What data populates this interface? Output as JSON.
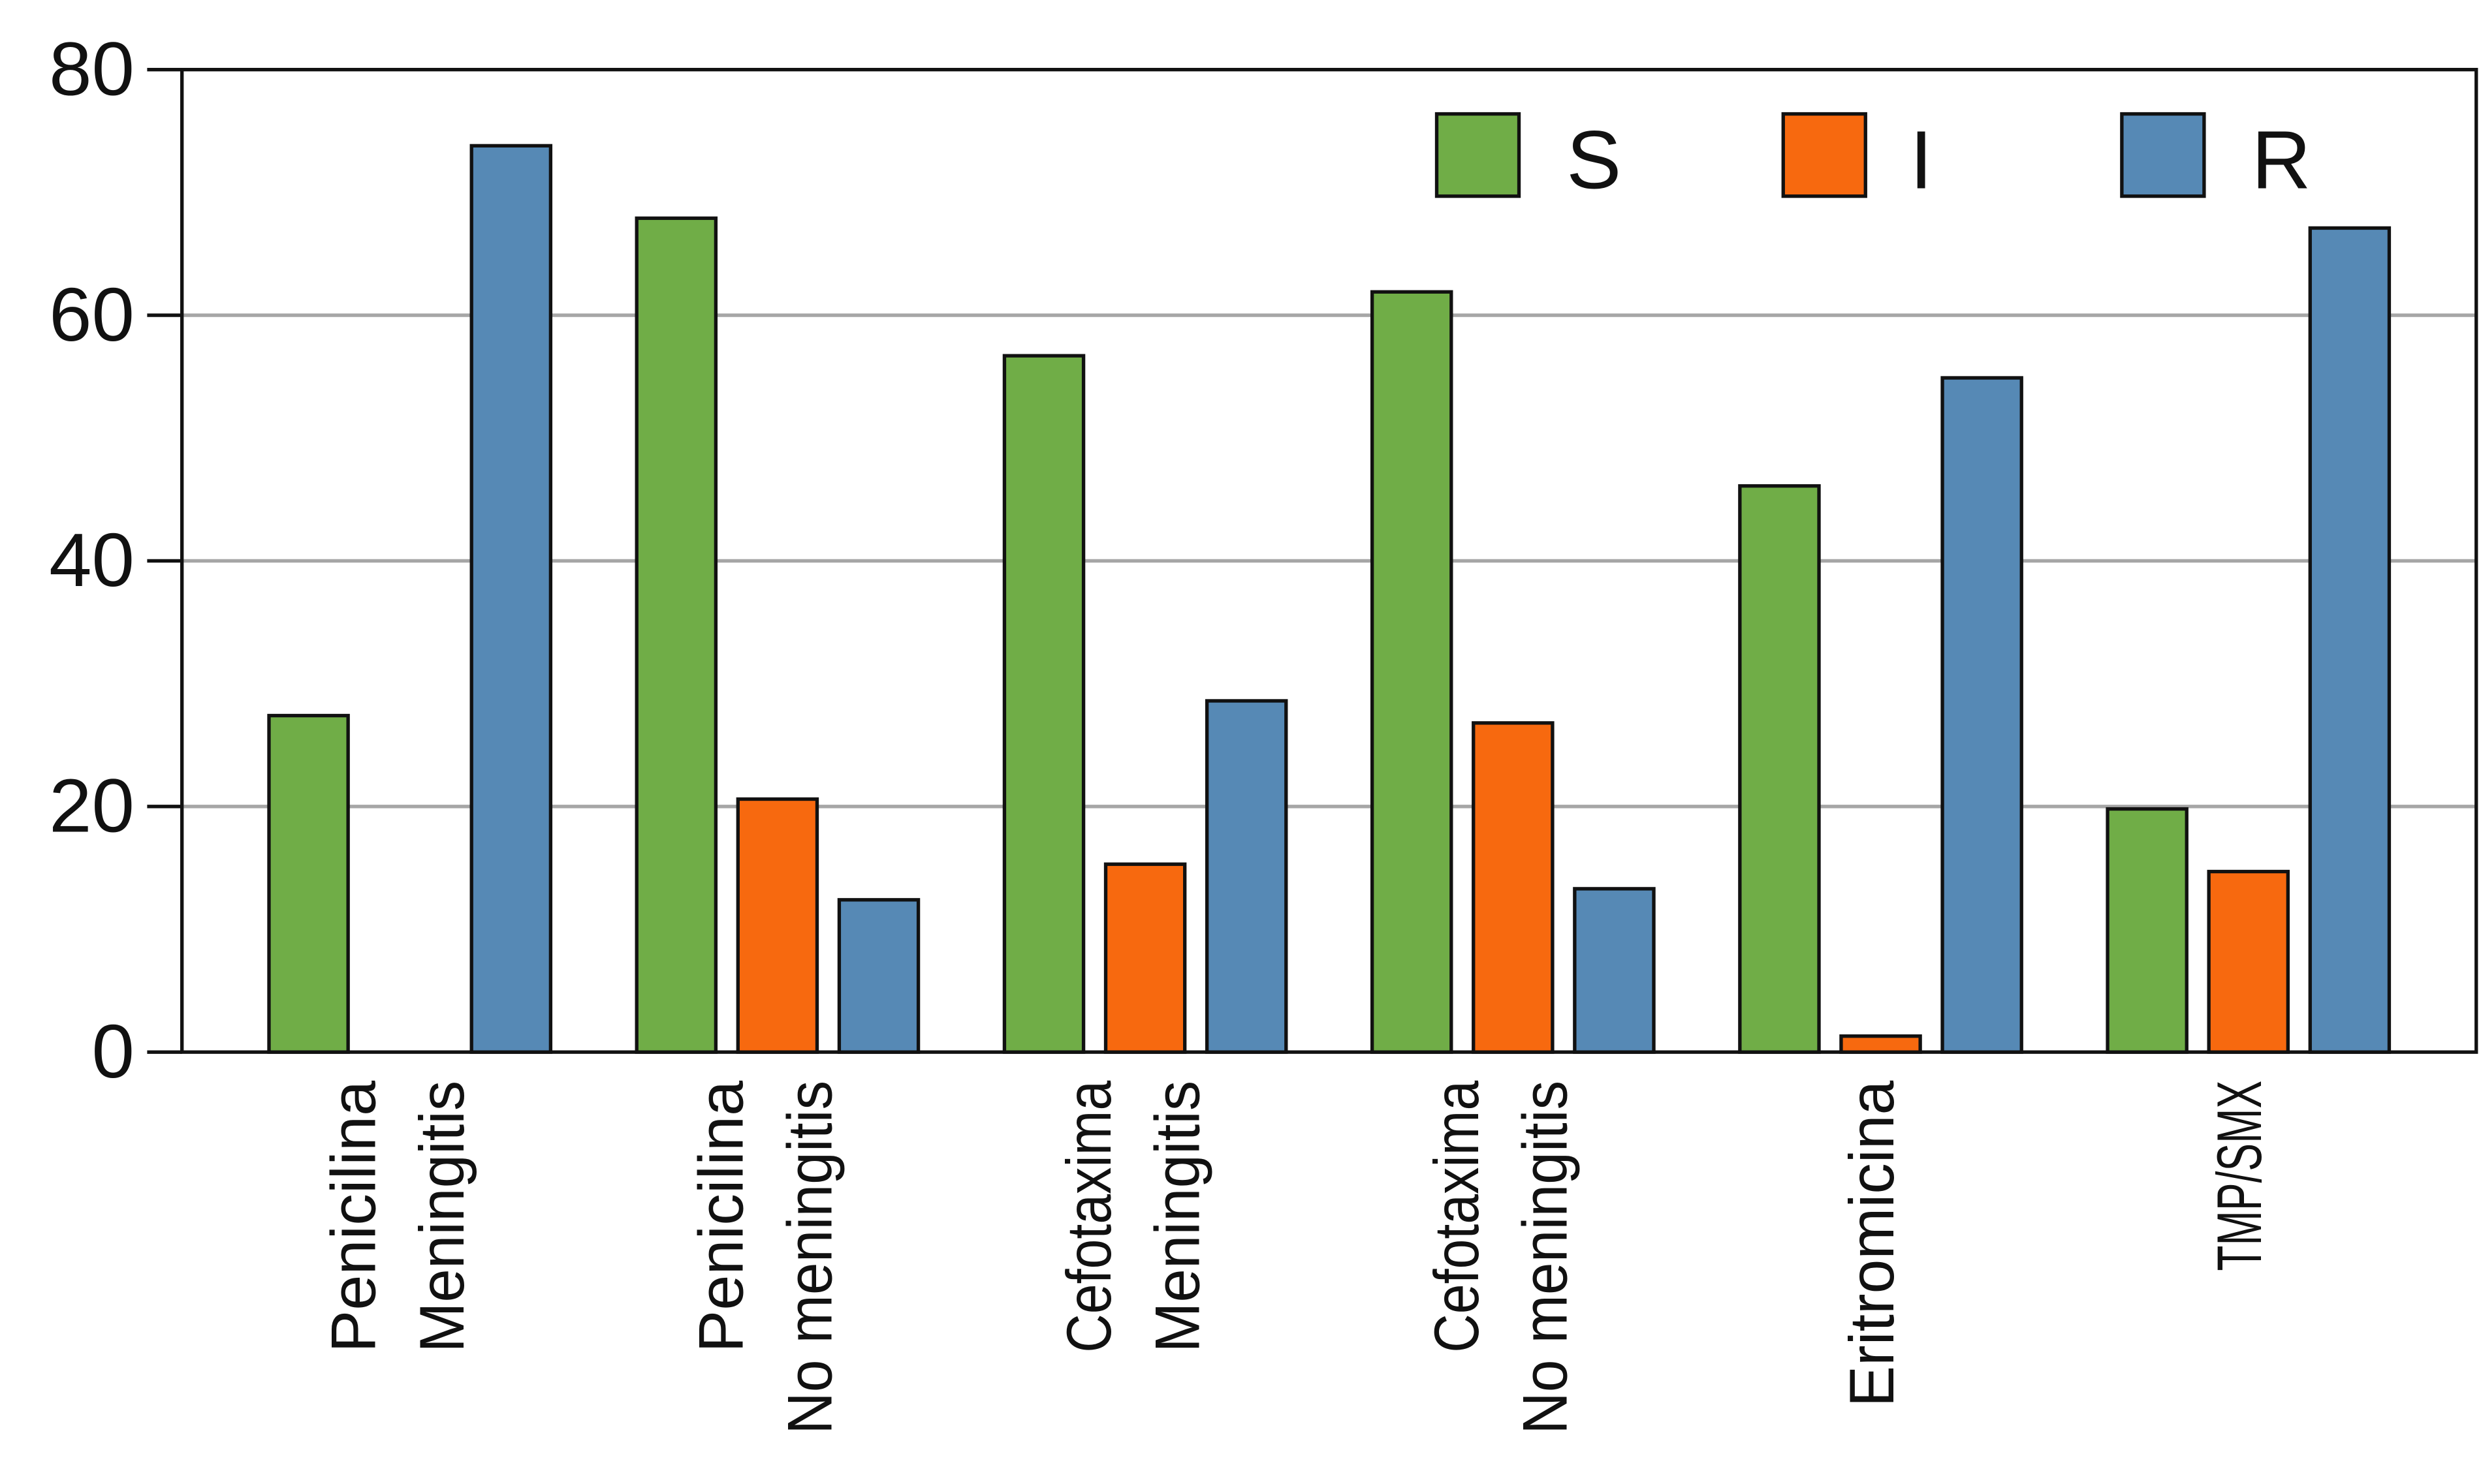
{
  "chart_data": {
    "type": "bar",
    "title": "",
    "xlabel": "",
    "ylabel": "",
    "ylim": [
      0,
      80
    ],
    "yticks": [
      "0",
      "20",
      "40",
      "60",
      "80"
    ],
    "grid": true,
    "legend_position": "top-right",
    "categories": [
      [
        "Penicilina",
        "Meningitis"
      ],
      [
        "Penicilina",
        "No meningitis"
      ],
      [
        "Cefotaxima",
        "Meningitis"
      ],
      [
        "Cefotaxima",
        "No meningitis"
      ],
      [
        "Eritromicina"
      ],
      [
        "TMP/SMX"
      ]
    ],
    "series": [
      {
        "name": "S",
        "color": "#70ad47",
        "values": [
          27.4,
          67.9,
          56.7,
          61.9,
          46.1,
          19.8
        ]
      },
      {
        "name": "I",
        "color": "#f7690f",
        "values": [
          0,
          20.6,
          15.3,
          26.8,
          1.3,
          14.7
        ]
      },
      {
        "name": "R",
        "color": "#5689b5",
        "values": [
          73.8,
          12.4,
          28.6,
          13.3,
          54.9,
          67.1
        ]
      }
    ]
  }
}
